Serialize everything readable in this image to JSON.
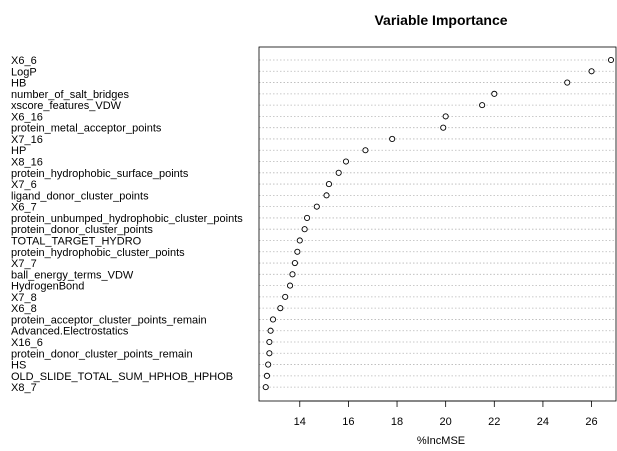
{
  "chart_data": {
    "type": "scatter",
    "title": "Variable Importance",
    "xlabel": "%IncMSE",
    "ylabel": "",
    "xlim": [
      12.5,
      27
    ],
    "xticks": [
      14,
      16,
      18,
      20,
      22,
      24,
      26
    ],
    "grid": "horizontal dotted",
    "categories": [
      "X6_6",
      "LogP",
      "HB",
      "number_of_salt_bridges",
      "xscore_features_VDW",
      "X6_16",
      "protein_metal_acceptor_points",
      "X7_16",
      "HP",
      "X8_16",
      "protein_hydrophobic_surface_points",
      "X7_6",
      "ligand_donor_cluster_points",
      "X6_7",
      "protein_unbumped_hydrophobic_cluster_points",
      "protein_donor_cluster_points",
      "TOTAL_TARGET_HYDRO",
      "protein_hydrophobic_cluster_points",
      "X7_7",
      "ball_energy_terms_VDW",
      "HydrogenBond",
      "X7_8",
      "X6_8",
      "protein_acceptor_cluster_points_remain",
      "Advanced.Electrostatics",
      "X16_6",
      "protein_donor_cluster_points_remain",
      "HS",
      "OLD_SLIDE_TOTAL_SUM_HPHOB_HPHOB",
      "X8_7"
    ],
    "values": [
      26.8,
      26.0,
      25.0,
      22.0,
      21.5,
      20.0,
      19.9,
      17.8,
      16.7,
      15.9,
      15.6,
      15.2,
      15.1,
      14.7,
      14.3,
      14.2,
      14.0,
      13.9,
      13.8,
      13.7,
      13.6,
      13.4,
      13.2,
      12.9,
      12.8,
      12.75,
      12.75,
      12.7,
      12.65,
      12.6
    ]
  }
}
